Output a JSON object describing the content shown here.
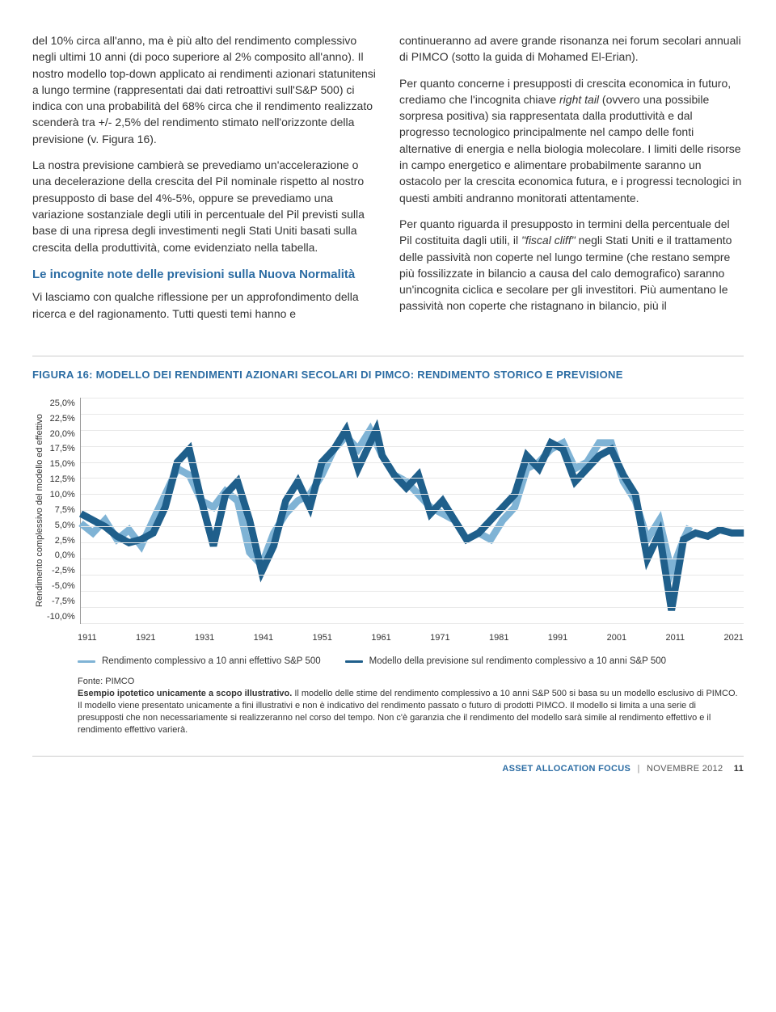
{
  "text": {
    "col1_p1": "del 10% circa all'anno, ma è più alto del rendimento complessivo negli ultimi 10 anni (di poco superiore al 2% composito all'anno). Il nostro modello top-down applicato ai rendimenti azionari statunitensi a lungo termine (rappresentati dai dati retroattivi sull'S&P 500) ci indica con una probabilità del 68% circa che il rendimento realizzato scenderà tra +/- 2,5% del rendimento stimato nell'orizzonte della previsione (v. Figura 16).",
    "col1_p2": "La nostra previsione cambierà se prevediamo un'accelerazione o una decelerazione della crescita del Pil nominale rispetto al nostro presupposto di base del 4%-5%, oppure se prevediamo una variazione sostanziale degli utili in percentuale del Pil previsti sulla base di una ripresa degli investimenti negli Stati Uniti basati sulla crescita della produttività, come evidenziato nella tabella.",
    "col1_h1": "Le incognite note delle previsioni sulla Nuova Normalità",
    "col1_p3": "Vi lasciamo con qualche riflessione per un approfondimento della ricerca e del ragionamento. Tutti questi temi hanno e",
    "col2_p1": "continueranno ad avere grande risonanza nei forum secolari annuali di PIMCO (sotto la guida di Mohamed El-Erian).",
    "col2_p2_a": "Per quanto concerne i presupposti di crescita economica in futuro, crediamo che l'incognita chiave ",
    "col2_p2_i": "right tail",
    "col2_p2_b": " (ovvero una possibile sorpresa positiva) sia rappresentata dalla produttività e dal progresso tecnologico principalmente nel campo delle fonti alternative di energia e nella biologia molecolare. I limiti delle risorse in campo energetico e alimentare probabilmente saranno un ostacolo per la crescita economica futura, e i progressi tecnologici in questi ambiti andranno monitorati attentamente.",
    "col2_p3_a": "Per quanto riguarda il presupposto in termini della percentuale del Pil costituita dagli utili, il ",
    "col2_p3_i": "\"fiscal cliff\"",
    "col2_p3_b": " negli Stati Uniti e il trattamento delle passività non coperte nel lungo termine (che restano sempre più fossilizzate in bilancio a causa del calo demografico) saranno un'incognita ciclica e secolare per gli investitori. Più aumentano le passività non coperte che ristagnano in bilancio, più il"
  },
  "chart": {
    "title": "FIGURA 16: MODELLO DEI RENDIMENTI AZIONARI SECOLARI DI PIMCO: RENDIMENTO STORICO E PREVISIONE",
    "y_label": "Rendimento complessivo del modello ed effettivo",
    "y_ticks": [
      "25,0%",
      "22,5%",
      "20,0%",
      "17,5%",
      "15,0%",
      "12,5%",
      "10,0%",
      "7,5%",
      "5,0%",
      "2,5%",
      "0,0%",
      "-2,5%",
      "-5,0%",
      "-7,5%",
      "-10,0%"
    ],
    "x_ticks": [
      "1911",
      "1921",
      "1931",
      "1941",
      "1951",
      "1961",
      "1971",
      "1981",
      "1991",
      "2001",
      "2011",
      "2021"
    ],
    "ylim": [
      -10,
      25
    ],
    "xlim": [
      1911,
      2021
    ],
    "grid_color": "#e8e8e8",
    "background": "#ffffff",
    "series": [
      {
        "name": "Rendimento complessivo a 10 anni effettivo S&P 500",
        "color": "#7fb3d5",
        "width": 2.2,
        "points": [
          [
            1911,
            5.5
          ],
          [
            1913,
            4.0
          ],
          [
            1915,
            6.0
          ],
          [
            1917,
            3.0
          ],
          [
            1919,
            4.5
          ],
          [
            1921,
            2.0
          ],
          [
            1923,
            6.0
          ],
          [
            1925,
            10.0
          ],
          [
            1927,
            14.0
          ],
          [
            1929,
            13.0
          ],
          [
            1931,
            9.0
          ],
          [
            1933,
            8.0
          ],
          [
            1935,
            10.5
          ],
          [
            1937,
            9.0
          ],
          [
            1939,
            1.0
          ],
          [
            1941,
            -1.0
          ],
          [
            1943,
            4.0
          ],
          [
            1945,
            7.0
          ],
          [
            1947,
            9.0
          ],
          [
            1949,
            10.0
          ],
          [
            1951,
            13.0
          ],
          [
            1953,
            17.0
          ],
          [
            1955,
            19.0
          ],
          [
            1957,
            17.0
          ],
          [
            1959,
            20.0
          ],
          [
            1961,
            16.0
          ],
          [
            1963,
            13.0
          ],
          [
            1965,
            12.0
          ],
          [
            1967,
            10.0
          ],
          [
            1969,
            8.0
          ],
          [
            1971,
            7.0
          ],
          [
            1973,
            6.0
          ],
          [
            1975,
            3.0
          ],
          [
            1977,
            4.0
          ],
          [
            1979,
            3.0
          ],
          [
            1981,
            6.0
          ],
          [
            1983,
            8.0
          ],
          [
            1985,
            14.0
          ],
          [
            1987,
            15.0
          ],
          [
            1989,
            17.0
          ],
          [
            1991,
            18.0
          ],
          [
            1993,
            14.0
          ],
          [
            1995,
            15.0
          ],
          [
            1997,
            18.0
          ],
          [
            1999,
            18.0
          ],
          [
            2001,
            12.0
          ],
          [
            2003,
            9.0
          ],
          [
            2005,
            3.0
          ],
          [
            2007,
            6.0
          ],
          [
            2009,
            -2.0
          ],
          [
            2011,
            3.0
          ],
          [
            2012,
            5.0
          ]
        ]
      },
      {
        "name": "Modello della previsione sul rendimento complessivo a 10 anni S&P 500",
        "color": "#1f5f8b",
        "width": 2.2,
        "points": [
          [
            1911,
            7.0
          ],
          [
            1913,
            6.0
          ],
          [
            1915,
            5.0
          ],
          [
            1917,
            3.5
          ],
          [
            1919,
            2.5
          ],
          [
            1921,
            3.0
          ],
          [
            1923,
            4.0
          ],
          [
            1925,
            8.0
          ],
          [
            1927,
            15.0
          ],
          [
            1929,
            17.0
          ],
          [
            1931,
            9.0
          ],
          [
            1933,
            2.0
          ],
          [
            1935,
            10.0
          ],
          [
            1937,
            12.0
          ],
          [
            1939,
            6.0
          ],
          [
            1941,
            -2.0
          ],
          [
            1943,
            2.0
          ],
          [
            1945,
            9.0
          ],
          [
            1947,
            12.0
          ],
          [
            1949,
            8.0
          ],
          [
            1951,
            15.0
          ],
          [
            1953,
            17.0
          ],
          [
            1955,
            20.0
          ],
          [
            1957,
            14.0
          ],
          [
            1959,
            18.0
          ],
          [
            1960,
            20.0
          ],
          [
            1961,
            16.0
          ],
          [
            1963,
            13.0
          ],
          [
            1965,
            11.0
          ],
          [
            1967,
            13.0
          ],
          [
            1969,
            7.0
          ],
          [
            1971,
            9.0
          ],
          [
            1973,
            6.0
          ],
          [
            1975,
            3.0
          ],
          [
            1977,
            4.0
          ],
          [
            1979,
            6.0
          ],
          [
            1981,
            8.0
          ],
          [
            1983,
            10.0
          ],
          [
            1985,
            16.0
          ],
          [
            1987,
            14.0
          ],
          [
            1989,
            18.0
          ],
          [
            1991,
            17.0
          ],
          [
            1993,
            12.0
          ],
          [
            1995,
            14.0
          ],
          [
            1997,
            16.0
          ],
          [
            1999,
            17.0
          ],
          [
            2001,
            13.0
          ],
          [
            2003,
            10.0
          ],
          [
            2005,
            0.0
          ],
          [
            2007,
            4.0
          ],
          [
            2009,
            -8.0
          ],
          [
            2011,
            3.0
          ],
          [
            2013,
            4.0
          ],
          [
            2015,
            3.5
          ],
          [
            2017,
            4.5
          ],
          [
            2019,
            4.0
          ],
          [
            2021,
            4.0
          ]
        ]
      }
    ],
    "legend": [
      "Rendimento complessivo a 10 anni effettivo S&P 500",
      "Modello della previsione sul rendimento complessivo a 10 anni S&P 500"
    ],
    "caption_source": "Fonte: PIMCO",
    "caption_bold": "Esempio ipotetico unicamente a scopo illustrativo.",
    "caption_rest": " Il modello delle stime del rendimento complessivo a 10 anni S&P 500 si basa su un modello esclusivo di PIMCO. Il modello viene presentato unicamente a fini illustrativi e non è indicativo del rendimento passato o futuro di prodotti PIMCO. Il modello si limita a una serie di presupposti che non necessariamente si realizzeranno nel corso del tempo. Non c'è garanzia che il rendimento del modello sarà simile al rendimento effettivo e il rendimento effettivo varierà."
  },
  "footer": {
    "publication": "ASSET ALLOCATION FOCUS",
    "date": "NOVEMBRE 2012",
    "page": "11"
  },
  "colors": {
    "accent": "#2b6ca3",
    "series_light": "#7fb3d5",
    "series_dark": "#1f5f8b"
  }
}
